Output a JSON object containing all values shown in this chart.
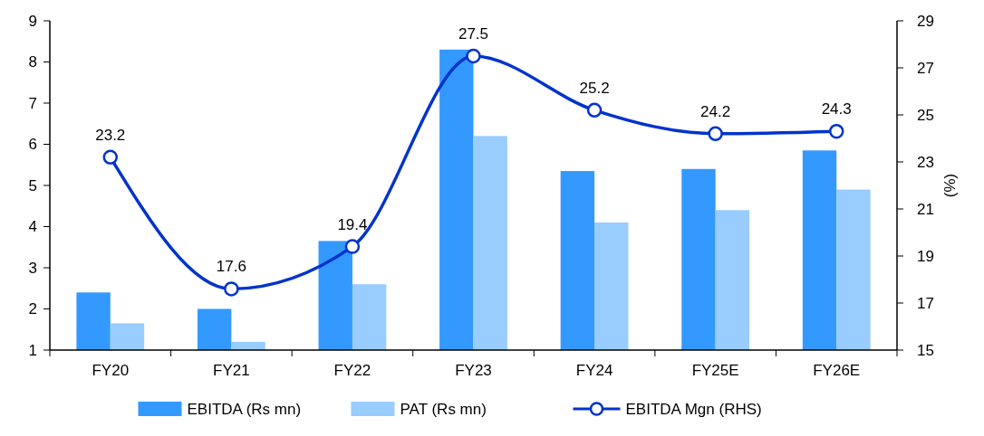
{
  "chart_data": {
    "type": "bar",
    "categories": [
      "FY20",
      "FY21",
      "FY22",
      "FY23",
      "FY24",
      "FY25E",
      "FY26E"
    ],
    "series": [
      {
        "name": "EBITDA (Rs mn)",
        "color": "#3399ff",
        "values": [
          2.4,
          2.0,
          3.65,
          8.3,
          5.35,
          5.4,
          5.85
        ]
      },
      {
        "name": "PAT (Rs mn)",
        "color": "#99ccff",
        "values": [
          1.65,
          1.2,
          2.6,
          6.2,
          4.1,
          4.4,
          4.9
        ]
      },
      {
        "name": "EBITDA Mgn (RHS)",
        "type": "line",
        "axis": "y2",
        "color": "#0033cc",
        "marker": "circle",
        "values": [
          23.2,
          17.6,
          19.4,
          27.5,
          25.2,
          24.2,
          24.3
        ],
        "value_labels": [
          "23.2",
          "17.6",
          "19.4",
          "27.5",
          "25.2",
          "24.2",
          "24.3"
        ]
      }
    ],
    "ylim": [
      1,
      9
    ],
    "yticks": [
      1,
      2,
      3,
      4,
      5,
      6,
      7,
      8,
      9
    ],
    "y2lim": [
      15,
      29
    ],
    "y2ticks": [
      15,
      17,
      19,
      21,
      23,
      25,
      27,
      29
    ],
    "y2label": "(%)",
    "legend": "bottom",
    "grid": false
  }
}
